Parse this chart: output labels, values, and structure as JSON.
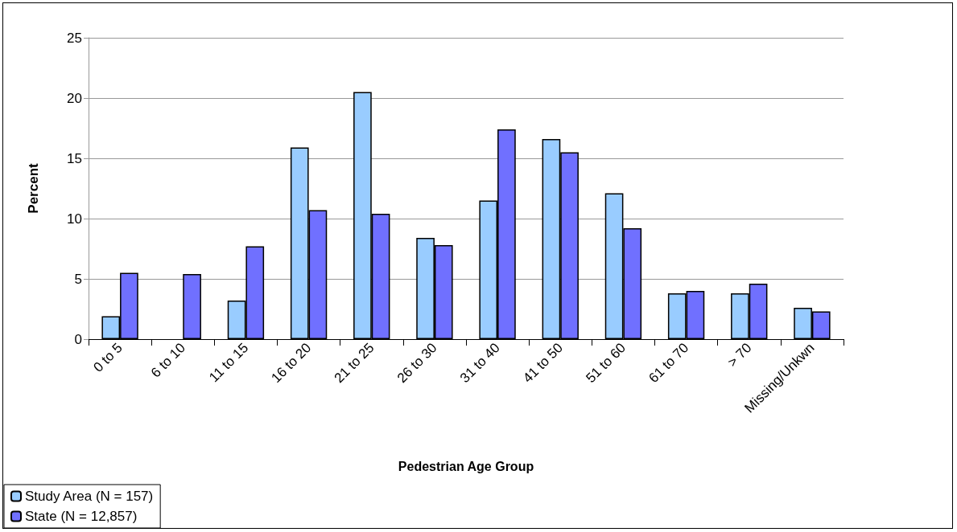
{
  "chart_data": {
    "type": "bar",
    "xlabel": "Pedestrian Age Group",
    "ylabel": "Percent",
    "categories": [
      "0 to 5",
      "6 to 10",
      "11 to 15",
      "16 to 20",
      "21 to 25",
      "26 to 30",
      "31 to 40",
      "41 to 50",
      "51 to 60",
      "61 to 70",
      "> 70",
      "Missing/Unkwn"
    ],
    "series": [
      {
        "name": "Study Area (N = 157)",
        "color": "#99ccff",
        "values": [
          1.9,
          null,
          3.2,
          15.9,
          20.5,
          8.4,
          11.5,
          16.6,
          12.1,
          3.8,
          3.8,
          2.6
        ]
      },
      {
        "name": "State (N = 12,857)",
        "color": "#7070ff",
        "values": [
          5.5,
          5.4,
          7.7,
          10.7,
          10.4,
          7.8,
          17.4,
          15.5,
          9.2,
          4.0,
          4.6,
          2.3
        ]
      }
    ],
    "ylim": [
      0,
      25
    ],
    "yticks": [
      0,
      5,
      10,
      15,
      20,
      25
    ],
    "grid": "y",
    "legend": "bottom left"
  }
}
